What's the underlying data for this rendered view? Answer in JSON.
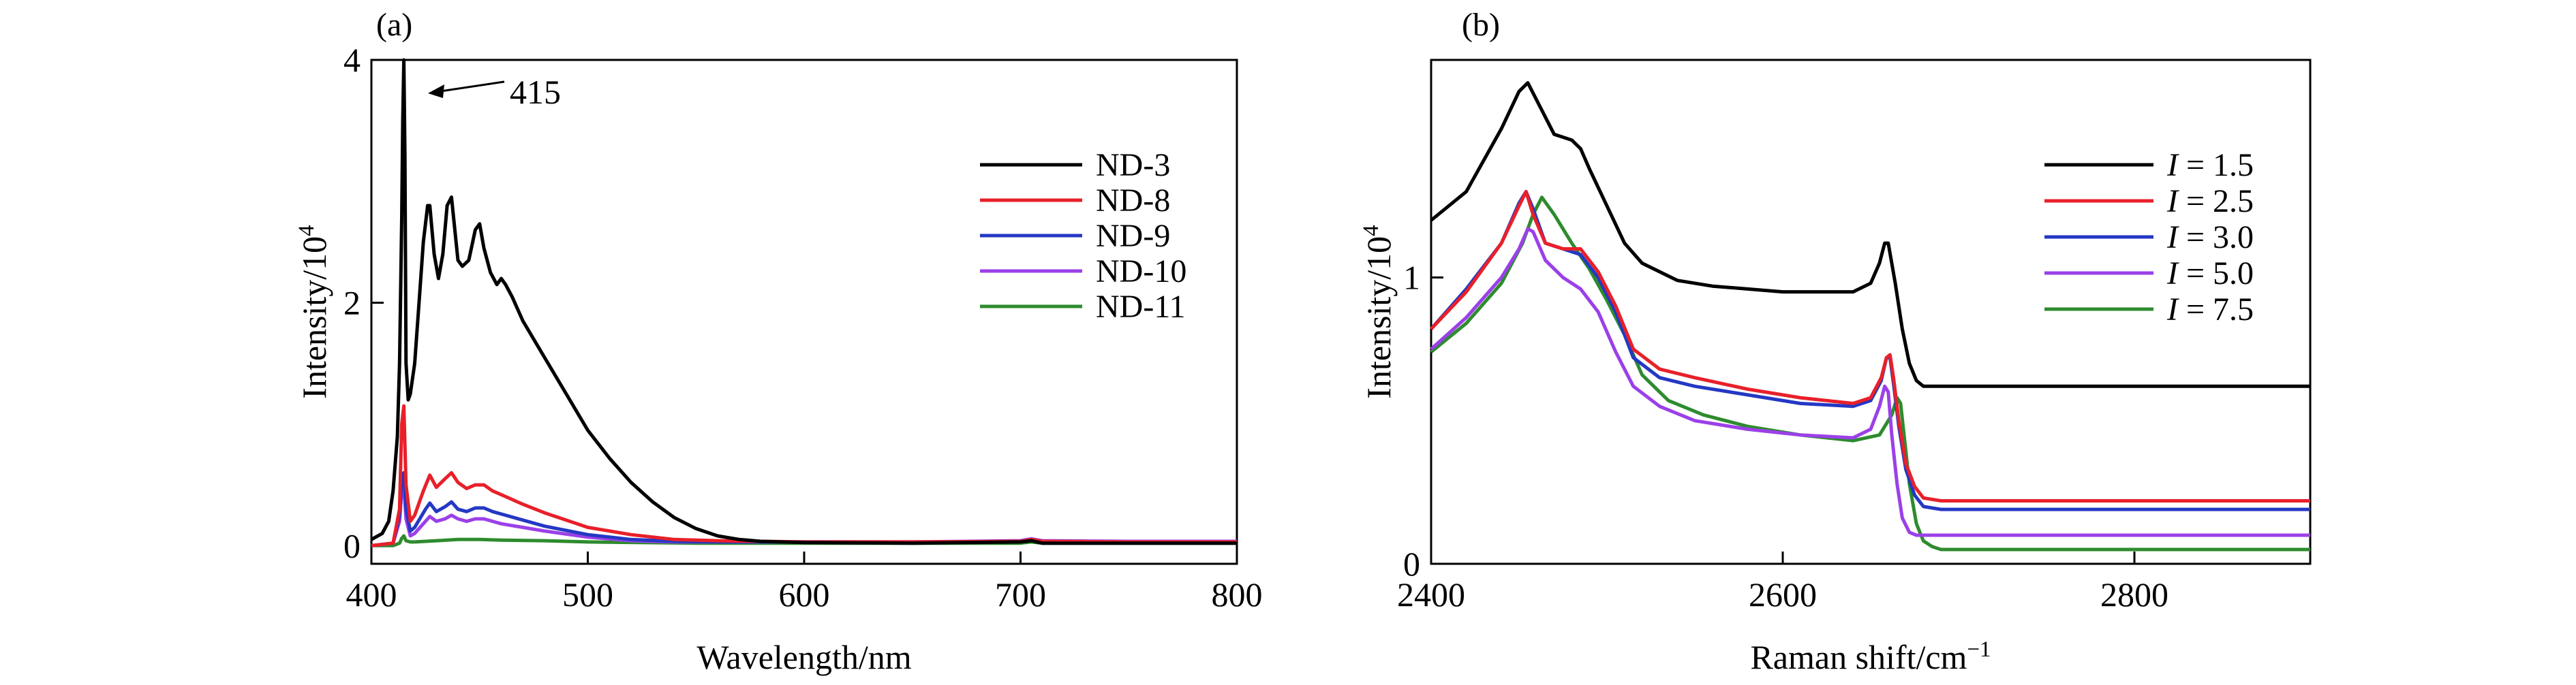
{
  "chart_data": [
    {
      "type": "line",
      "panel_label": "(a)",
      "xlabel": "Wavelength/nm",
      "ylabel_text": "Intensity/10",
      "ylabel_exp": "4",
      "xlim": [
        400,
        800
      ],
      "ylim": [
        -0.15,
        4.0
      ],
      "xticks": [
        400,
        500,
        600,
        700,
        800
      ],
      "xtick_labels": [
        "400",
        "500",
        "600",
        "700",
        "800"
      ],
      "yticks": [
        0,
        2,
        4
      ],
      "ytick_labels": [
        "0",
        "2",
        "4"
      ],
      "annotation": {
        "text": "415",
        "x": 415,
        "y": 3.95
      },
      "legend_position": "right",
      "series": [
        {
          "name": "ND-3",
          "color": "#000000",
          "x": [
            400,
            405,
            408,
            410,
            412,
            413,
            414,
            414.5,
            415,
            415.5,
            416,
            417,
            418,
            420,
            422,
            424,
            426,
            427,
            429,
            431,
            433,
            435,
            437,
            438,
            440,
            442,
            445,
            448,
            450,
            452,
            455,
            458,
            460,
            462,
            465,
            470,
            480,
            490,
            500,
            510,
            520,
            530,
            540,
            550,
            560,
            570,
            580,
            590,
            600,
            650,
            700,
            705,
            710,
            750,
            800
          ],
          "y": [
            0.05,
            0.1,
            0.2,
            0.45,
            0.9,
            1.5,
            2.7,
            3.5,
            4.0,
            3.2,
            1.5,
            1.2,
            1.25,
            1.5,
            2.0,
            2.5,
            2.8,
            2.8,
            2.4,
            2.2,
            2.4,
            2.8,
            2.87,
            2.7,
            2.35,
            2.3,
            2.35,
            2.6,
            2.65,
            2.45,
            2.25,
            2.15,
            2.2,
            2.15,
            2.05,
            1.85,
            1.55,
            1.25,
            0.95,
            0.72,
            0.52,
            0.36,
            0.23,
            0.14,
            0.08,
            0.05,
            0.035,
            0.03,
            0.025,
            0.02,
            0.03,
            0.04,
            0.02,
            0.02,
            0.02
          ]
        },
        {
          "name": "ND-8",
          "color": "#e8202a",
          "x": [
            400,
            410,
            413,
            414,
            415,
            416,
            418,
            420,
            424,
            427,
            430,
            434,
            437,
            440,
            444,
            448,
            452,
            456,
            460,
            470,
            480,
            500,
            520,
            540,
            560,
            580,
            600,
            650,
            700,
            705,
            710,
            750,
            800
          ],
          "y": [
            0.0,
            0.02,
            0.3,
            1.0,
            1.15,
            0.5,
            0.2,
            0.25,
            0.45,
            0.58,
            0.48,
            0.55,
            0.6,
            0.52,
            0.47,
            0.5,
            0.5,
            0.45,
            0.42,
            0.34,
            0.27,
            0.15,
            0.09,
            0.05,
            0.04,
            0.035,
            0.03,
            0.03,
            0.035,
            0.05,
            0.035,
            0.03,
            0.03
          ]
        },
        {
          "name": "ND-9",
          "color": "#2438c4",
          "x": [
            400,
            410,
            413,
            414,
            415,
            416,
            418,
            420,
            425,
            427,
            430,
            434,
            437,
            440,
            444,
            448,
            452,
            456,
            460,
            470,
            480,
            500,
            520,
            540,
            560,
            580,
            600,
            650,
            700,
            705,
            710,
            750,
            800
          ],
          "y": [
            0.0,
            0.02,
            0.25,
            0.55,
            0.6,
            0.3,
            0.12,
            0.15,
            0.3,
            0.35,
            0.28,
            0.32,
            0.36,
            0.3,
            0.28,
            0.31,
            0.31,
            0.28,
            0.26,
            0.21,
            0.16,
            0.09,
            0.05,
            0.035,
            0.03,
            0.03,
            0.03,
            0.03,
            0.035,
            0.05,
            0.035,
            0.03,
            0.03
          ]
        },
        {
          "name": "ND-10",
          "color": "#9b40e8",
          "x": [
            400,
            410,
            413,
            414,
            415,
            416,
            418,
            420,
            425,
            427,
            430,
            434,
            437,
            440,
            444,
            448,
            452,
            456,
            460,
            470,
            480,
            500,
            520,
            540,
            560,
            580,
            600,
            650,
            700,
            705,
            710,
            750,
            800
          ],
          "y": [
            0.0,
            0.02,
            0.2,
            0.45,
            0.5,
            0.22,
            0.08,
            0.1,
            0.2,
            0.24,
            0.2,
            0.22,
            0.25,
            0.22,
            0.2,
            0.22,
            0.22,
            0.2,
            0.18,
            0.15,
            0.12,
            0.07,
            0.04,
            0.03,
            0.03,
            0.03,
            0.03,
            0.03,
            0.04,
            0.055,
            0.04,
            0.035,
            0.035
          ]
        },
        {
          "name": "ND-11",
          "color": "#2e8b2e",
          "x": [
            400,
            410,
            413,
            414,
            415,
            416,
            418,
            420,
            430,
            440,
            450,
            460,
            480,
            500,
            550,
            600,
            650,
            700,
            705,
            710,
            750,
            800
          ],
          "y": [
            0.0,
            0.0,
            0.02,
            0.06,
            0.08,
            0.04,
            0.03,
            0.03,
            0.04,
            0.05,
            0.05,
            0.045,
            0.04,
            0.03,
            0.02,
            0.02,
            0.02,
            0.02,
            0.03,
            0.02,
            0.02,
            0.02
          ]
        }
      ]
    },
    {
      "type": "line",
      "panel_label": "(b)",
      "xlabel_text": "Raman shift/cm",
      "xlabel_exp": "−1",
      "ylabel_text": "Intensity/10",
      "ylabel_exp": "4",
      "xlim": [
        2400,
        2900
      ],
      "ylim": [
        0.0,
        1.76
      ],
      "xticks": [
        2400,
        2600,
        2800
      ],
      "xtick_labels": [
        "2400",
        "2600",
        "2800"
      ],
      "yticks": [
        0,
        1
      ],
      "ytick_labels": [
        "0",
        "1"
      ],
      "legend_position": "right",
      "series": [
        {
          "name_italic": "I",
          "name_rest": " = 1.5",
          "color": "#000000",
          "x": [
            2400,
            2420,
            2440,
            2450,
            2455,
            2460,
            2470,
            2480,
            2485,
            2490,
            2500,
            2510,
            2520,
            2540,
            2560,
            2580,
            2600,
            2620,
            2640,
            2650,
            2655,
            2658,
            2660,
            2664,
            2668,
            2672,
            2676,
            2680,
            2700,
            2750,
            2800,
            2850,
            2900
          ],
          "y": [
            1.2,
            1.3,
            1.52,
            1.65,
            1.68,
            1.62,
            1.5,
            1.48,
            1.45,
            1.38,
            1.25,
            1.12,
            1.05,
            0.99,
            0.97,
            0.96,
            0.95,
            0.95,
            0.95,
            0.98,
            1.05,
            1.12,
            1.12,
            0.98,
            0.82,
            0.7,
            0.64,
            0.62,
            0.62,
            0.62,
            0.62,
            0.62,
            0.62
          ]
        },
        {
          "name_italic": "I",
          "name_rest": " = 2.5",
          "color": "#e8202a",
          "x": [
            2400,
            2420,
            2440,
            2450,
            2454,
            2458,
            2465,
            2475,
            2485,
            2495,
            2505,
            2515,
            2530,
            2550,
            2580,
            2610,
            2640,
            2650,
            2656,
            2659,
            2661,
            2663,
            2666,
            2670,
            2675,
            2680,
            2690,
            2700,
            2750,
            2800,
            2850,
            2900
          ],
          "y": [
            0.82,
            0.95,
            1.12,
            1.25,
            1.3,
            1.22,
            1.12,
            1.1,
            1.1,
            1.02,
            0.9,
            0.75,
            0.68,
            0.65,
            0.61,
            0.58,
            0.56,
            0.58,
            0.65,
            0.72,
            0.73,
            0.65,
            0.5,
            0.35,
            0.27,
            0.23,
            0.22,
            0.22,
            0.22,
            0.22,
            0.22,
            0.22
          ]
        },
        {
          "name_italic": "I",
          "name_rest": " = 3.0",
          "color": "#2438c4",
          "x": [
            2400,
            2420,
            2440,
            2450,
            2454,
            2458,
            2465,
            2475,
            2485,
            2495,
            2505,
            2515,
            2530,
            2550,
            2580,
            2610,
            2640,
            2650,
            2656,
            2659,
            2661,
            2663,
            2666,
            2670,
            2675,
            2680,
            2690,
            2700,
            2750,
            2800,
            2850,
            2900
          ],
          "y": [
            0.82,
            0.96,
            1.12,
            1.26,
            1.3,
            1.24,
            1.12,
            1.1,
            1.08,
            1.0,
            0.88,
            0.72,
            0.65,
            0.62,
            0.59,
            0.56,
            0.55,
            0.57,
            0.64,
            0.72,
            0.72,
            0.63,
            0.48,
            0.33,
            0.24,
            0.2,
            0.19,
            0.19,
            0.19,
            0.19,
            0.19,
            0.19
          ]
        },
        {
          "name_italic": "I",
          "name_rest": " = 5.0",
          "color": "#9b40e8",
          "x": [
            2400,
            2420,
            2440,
            2450,
            2455,
            2458,
            2465,
            2475,
            2485,
            2495,
            2505,
            2515,
            2530,
            2550,
            2580,
            2610,
            2640,
            2650,
            2655,
            2658,
            2660,
            2662,
            2665,
            2668,
            2672,
            2676,
            2680,
            2700,
            2750,
            2800,
            2850,
            2900
          ],
          "y": [
            0.75,
            0.86,
            1.0,
            1.1,
            1.17,
            1.16,
            1.06,
            1.0,
            0.96,
            0.88,
            0.74,
            0.62,
            0.55,
            0.5,
            0.47,
            0.45,
            0.44,
            0.47,
            0.55,
            0.62,
            0.6,
            0.45,
            0.28,
            0.16,
            0.11,
            0.1,
            0.1,
            0.1,
            0.1,
            0.1,
            0.1,
            0.1
          ]
        },
        {
          "name_italic": "I",
          "name_rest": " = 7.5",
          "color": "#2e8b2e",
          "x": [
            2400,
            2420,
            2440,
            2452,
            2458,
            2463,
            2470,
            2480,
            2490,
            2500,
            2510,
            2520,
            2535,
            2555,
            2580,
            2610,
            2640,
            2655,
            2662,
            2665,
            2667,
            2669,
            2672,
            2676,
            2680,
            2685,
            2690,
            2700,
            2750,
            2800,
            2850,
            2900
          ],
          "y": [
            0.74,
            0.84,
            0.98,
            1.12,
            1.22,
            1.28,
            1.22,
            1.12,
            1.03,
            0.92,
            0.8,
            0.66,
            0.57,
            0.52,
            0.48,
            0.45,
            0.43,
            0.45,
            0.52,
            0.58,
            0.56,
            0.45,
            0.28,
            0.14,
            0.08,
            0.06,
            0.05,
            0.05,
            0.05,
            0.05,
            0.05,
            0.05
          ]
        }
      ]
    }
  ]
}
